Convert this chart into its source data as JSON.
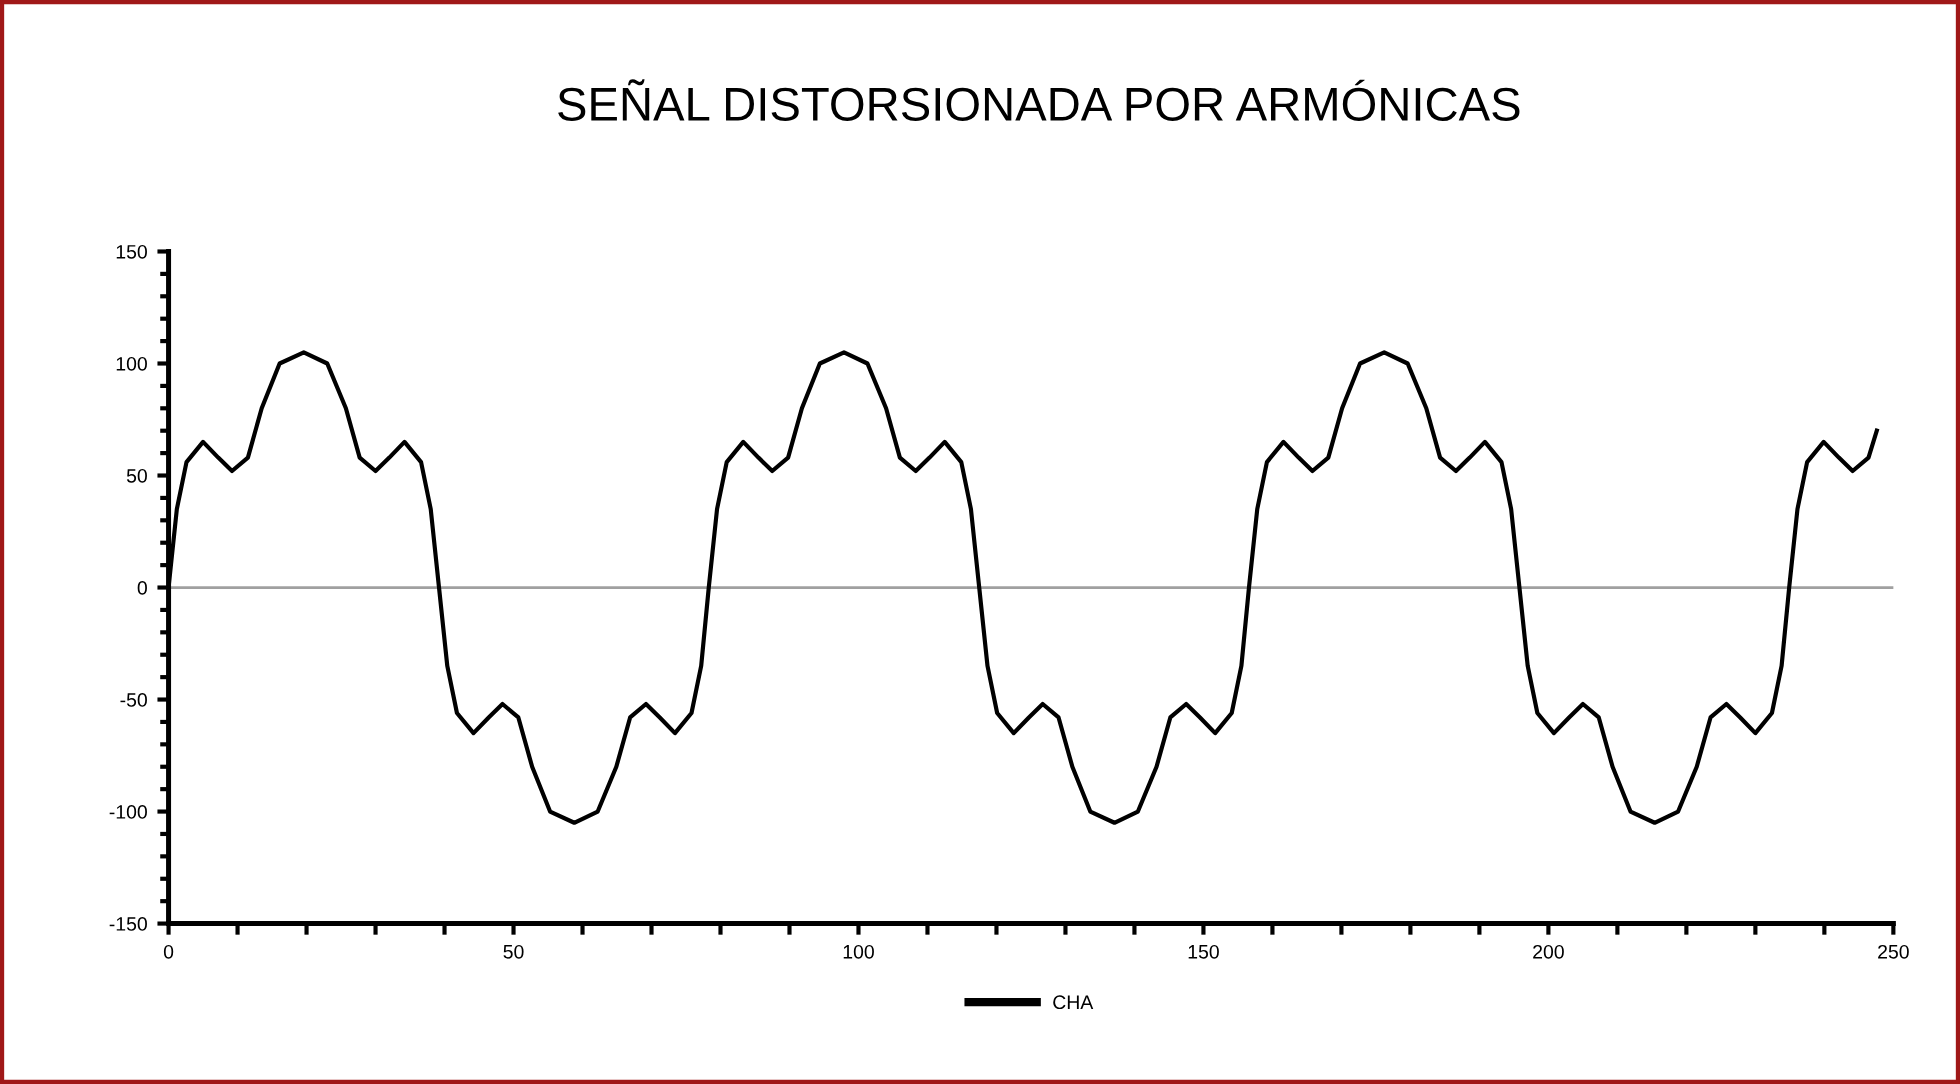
{
  "chart_data": {
    "type": "line",
    "title": "SEÑAL DISTORSIONADA POR ARMÓNICAS",
    "x": [
      0,
      1.2,
      2.6,
      5.0,
      7.2,
      9.2,
      11.5,
      13.5,
      16.1,
      19.6,
      23.0,
      25.7,
      27.7,
      30.0,
      32.0,
      34.2,
      36.6,
      38.0,
      39.2,
      40.4,
      41.8,
      44.2,
      46.4,
      48.4,
      50.7,
      52.7,
      55.3,
      58.8,
      62.2,
      64.9,
      66.9,
      69.2,
      71.2,
      73.4,
      75.8,
      77.2,
      78.3,
      79.5,
      80.9,
      83.3,
      85.5,
      87.5,
      89.8,
      91.8,
      94.4,
      97.9,
      101.3,
      104.0,
      106.0,
      108.3,
      110.3,
      112.5,
      114.9,
      116.3,
      117.5,
      118.7,
      120.1,
      122.5,
      124.7,
      126.7,
      129.0,
      131.0,
      133.6,
      137.1,
      140.5,
      143.2,
      145.2,
      147.5,
      149.5,
      151.7,
      154.1,
      155.5,
      156.6,
      157.8,
      159.2,
      161.6,
      163.8,
      165.8,
      168.1,
      170.1,
      172.7,
      176.2,
      179.6,
      182.3,
      184.3,
      186.6,
      188.6,
      190.8,
      193.2,
      194.6,
      195.8,
      197.0,
      198.4,
      200.8,
      203.0,
      205.0,
      207.3,
      209.3,
      211.9,
      215.4,
      218.8,
      221.5,
      223.5,
      225.8,
      227.8,
      230.0,
      232.4,
      233.8,
      234.9,
      236.1,
      237.5,
      239.9,
      242.1,
      244.1,
      246.4,
      247.6
    ],
    "series": [
      {
        "name": "CHA",
        "color": "#000000",
        "values": [
          0,
          35,
          56,
          65,
          58,
          52,
          58,
          80,
          100,
          105,
          100,
          80,
          58,
          52,
          58,
          65,
          56,
          35,
          0,
          -35,
          -56,
          -65,
          -58,
          -52,
          -58,
          -80,
          -100,
          -105,
          -100,
          -80,
          -58,
          -52,
          -58,
          -65,
          -56,
          -35,
          0,
          35,
          56,
          65,
          58,
          52,
          58,
          80,
          100,
          105,
          100,
          80,
          58,
          52,
          58,
          65,
          56,
          35,
          0,
          -35,
          -56,
          -65,
          -58,
          -52,
          -58,
          -80,
          -100,
          -105,
          -100,
          -80,
          -58,
          -52,
          -58,
          -65,
          -56,
          -35,
          0,
          35,
          56,
          65,
          58,
          52,
          58,
          80,
          100,
          105,
          100,
          80,
          58,
          52,
          58,
          65,
          56,
          35,
          0,
          -35,
          -56,
          -65,
          -58,
          -52,
          -58,
          -80,
          -100,
          -105,
          -100,
          -80,
          -58,
          -52,
          -58,
          -65,
          -56,
          -35,
          0,
          35,
          56,
          65,
          58,
          52,
          58,
          70
        ]
      }
    ],
    "xlim": [
      0,
      250
    ],
    "ylim": [
      -150,
      150
    ],
    "xticks": [
      0,
      {
        "value": 10,
        "label": null
      },
      {
        "value": 20,
        "label": null
      },
      {
        "value": 30,
        "label": null
      },
      {
        "value": 40,
        "label": null
      },
      50,
      {
        "value": 60,
        "label": null
      },
      {
        "value": 70,
        "label": null
      },
      {
        "value": 80,
        "label": null
      },
      {
        "value": 90,
        "label": null
      },
      100,
      {
        "value": 110,
        "label": null
      },
      {
        "value": 120,
        "label": null
      },
      {
        "value": 130,
        "label": null
      },
      {
        "value": 140,
        "label": null
      },
      150,
      {
        "value": 160,
        "label": null
      },
      {
        "value": 170,
        "label": null
      },
      {
        "value": 180,
        "label": null
      },
      {
        "value": 190,
        "label": null
      },
      200,
      {
        "value": 210,
        "label": null
      },
      {
        "value": 220,
        "label": null
      },
      {
        "value": 230,
        "label": null
      },
      {
        "value": 240,
        "label": null
      },
      250
    ],
    "yticks": [
      -150,
      {
        "value": -140,
        "label": null
      },
      {
        "value": -130,
        "label": null
      },
      {
        "value": -120,
        "label": null
      },
      {
        "value": -110,
        "label": null
      },
      -100,
      {
        "value": -90,
        "label": null
      },
      {
        "value": -80,
        "label": null
      },
      {
        "value": -70,
        "label": null
      },
      {
        "value": -60,
        "label": null
      },
      -50,
      {
        "value": -40,
        "label": null
      },
      {
        "value": -30,
        "label": null
      },
      {
        "value": -20,
        "label": null
      },
      {
        "value": -10,
        "label": null
      },
      0,
      {
        "value": 10,
        "label": null
      },
      {
        "value": 20,
        "label": null
      },
      {
        "value": 30,
        "label": null
      },
      {
        "value": 40,
        "label": null
      },
      50,
      {
        "value": 60,
        "label": null
      },
      {
        "value": 70,
        "label": null
      },
      {
        "value": 80,
        "label": null
      },
      {
        "value": 90,
        "label": null
      },
      100,
      {
        "value": 110,
        "label": null
      },
      {
        "value": 120,
        "label": null
      },
      {
        "value": 130,
        "label": null
      },
      {
        "value": 140,
        "label": null
      },
      150
    ],
    "ref_lines": [
      {
        "axis": "y",
        "value": 0,
        "color": "#a0a0a0"
      }
    ],
    "grid": false,
    "legend": "bottom",
    "marker": "none",
    "line_style": "solid"
  }
}
